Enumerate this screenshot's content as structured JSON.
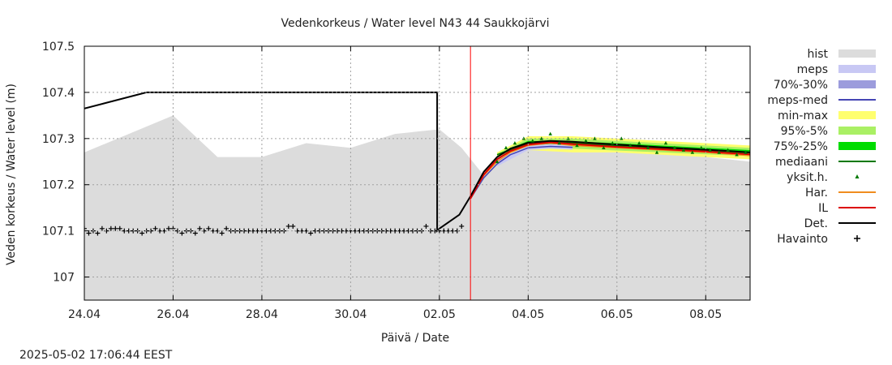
{
  "chart_data": {
    "type": "line",
    "title": "Vedenkorkeus / Water level   N43 44  Saukkojärvi",
    "xlabel": "Päivä / Date",
    "ylabel": "Veden korkeus / Water level (m)",
    "xlim": [
      0,
      15
    ],
    "ylim": [
      106.95,
      107.5
    ],
    "x_ticks": [
      {
        "pos": 0,
        "label": "24.04"
      },
      {
        "pos": 2,
        "label": "26.04"
      },
      {
        "pos": 4,
        "label": "28.04"
      },
      {
        "pos": 6,
        "label": "30.04"
      },
      {
        "pos": 8,
        "label": "02.05"
      },
      {
        "pos": 10,
        "label": "04.05"
      },
      {
        "pos": 12,
        "label": "06.05"
      },
      {
        "pos": 14,
        "label": "08.05"
      }
    ],
    "y_ticks": [
      {
        "val": 107.0,
        "label": "107"
      },
      {
        "val": 107.1,
        "label": "107.1"
      },
      {
        "val": 107.2,
        "label": "107.2"
      },
      {
        "val": 107.3,
        "label": "107.3"
      },
      {
        "val": 107.4,
        "label": "107.4"
      },
      {
        "val": 107.5,
        "label": "107.5"
      }
    ],
    "grid": true,
    "current_time_x": 8.7,
    "legend_position": "right",
    "legend": [
      {
        "key": "hist",
        "label": "hist",
        "style": "box",
        "color": "#dcdcdc"
      },
      {
        "key": "meps",
        "label": "meps",
        "style": "box",
        "color": "#c8c8f4"
      },
      {
        "key": "meps7030",
        "label": "70%-30%",
        "style": "box",
        "color": "#9c9cdc"
      },
      {
        "key": "mepsmed",
        "label": "meps-med",
        "style": "line",
        "color": "#4646b4"
      },
      {
        "key": "minmax",
        "label": "min-max",
        "style": "box",
        "color": "#ffff6e"
      },
      {
        "key": "p955",
        "label": "95%-5%",
        "style": "box",
        "color": "#aaf064"
      },
      {
        "key": "p7525",
        "label": "75%-25%",
        "style": "box",
        "color": "#00dc00"
      },
      {
        "key": "median",
        "label": "mediaani",
        "style": "line",
        "color": "#007800"
      },
      {
        "key": "yksit",
        "label": "yksit.h.",
        "style": "tri",
        "color": "#007800"
      },
      {
        "key": "har",
        "label": "Har.",
        "style": "line",
        "color": "#f08c1e"
      },
      {
        "key": "il",
        "label": "IL",
        "style": "line",
        "color": "#dc0000"
      },
      {
        "key": "det",
        "label": "Det.",
        "style": "line",
        "color": "#000000"
      },
      {
        "key": "havainto",
        "label": "Havainto",
        "style": "plus",
        "color": "#000000"
      }
    ],
    "series": [
      {
        "name": "hist",
        "kind": "area",
        "x": [
          0,
          2,
          3,
          4,
          5,
          6,
          7,
          8,
          8.5,
          9,
          9.5,
          10,
          11,
          12,
          13,
          14,
          15
        ],
        "y": [
          107.27,
          107.35,
          107.26,
          107.26,
          107.29,
          107.28,
          107.31,
          107.32,
          107.28,
          107.22,
          107.26,
          107.28,
          107.28,
          107.275,
          107.27,
          107.26,
          107.25
        ]
      },
      {
        "name": "min-max",
        "kind": "band",
        "x": [
          9.3,
          10,
          11,
          12,
          13,
          14,
          15
        ],
        "lo": [
          107.26,
          107.275,
          107.27,
          107.27,
          107.265,
          107.26,
          107.255
        ],
        "hi": [
          107.27,
          107.305,
          107.305,
          107.3,
          107.295,
          107.29,
          107.285
        ]
      },
      {
        "name": "95%-5%",
        "kind": "band",
        "x": [
          9.3,
          10,
          11,
          12,
          13,
          14,
          15
        ],
        "lo": [
          107.262,
          107.28,
          107.278,
          107.274,
          107.27,
          107.266,
          107.262
        ],
        "hi": [
          107.267,
          107.3,
          107.3,
          107.295,
          107.29,
          107.285,
          107.28
        ]
      },
      {
        "name": "75%-25%",
        "kind": "band",
        "x": [
          9.3,
          10,
          11,
          12,
          13,
          14,
          15
        ],
        "lo": [
          107.264,
          107.285,
          107.284,
          107.28,
          107.276,
          107.272,
          107.268
        ],
        "hi": [
          107.266,
          107.295,
          107.294,
          107.29,
          107.285,
          107.28,
          107.275
        ]
      },
      {
        "name": "meps",
        "kind": "band",
        "x": [
          9.3,
          10,
          10.5,
          11
        ],
        "lo": [
          107.24,
          107.275,
          107.278,
          107.276
        ],
        "hi": [
          107.255,
          107.285,
          107.288,
          107.286
        ]
      },
      {
        "name": "mediaani",
        "kind": "line",
        "x": [
          9.3,
          10,
          10.5,
          11,
          12,
          13,
          14,
          15
        ],
        "y": [
          107.265,
          107.29,
          107.292,
          107.29,
          107.285,
          107.28,
          107.275,
          107.27
        ]
      },
      {
        "name": "meps-med",
        "kind": "line",
        "x": [
          8.7,
          9,
          9.3,
          9.6,
          10,
          10.5,
          11
        ],
        "y": [
          107.17,
          107.215,
          107.245,
          107.265,
          107.28,
          107.283,
          107.281
        ]
      },
      {
        "name": "Har.",
        "kind": "line",
        "x": [
          8.7,
          9,
          9.3,
          9.6,
          10,
          10.5,
          11,
          12,
          13,
          14,
          15
        ],
        "y": [
          107.17,
          107.22,
          107.25,
          107.27,
          107.285,
          107.29,
          107.285,
          107.28,
          107.275,
          107.27,
          107.263
        ]
      },
      {
        "name": "IL",
        "kind": "line",
        "x": [
          8.7,
          9,
          9.3,
          9.6,
          10,
          10.5,
          11,
          12,
          13,
          14,
          15
        ],
        "y": [
          107.17,
          107.222,
          107.255,
          107.273,
          107.287,
          107.292,
          107.288,
          107.282,
          107.277,
          107.272,
          107.266
        ]
      },
      {
        "name": "Det.",
        "kind": "line",
        "x": [
          0,
          1.4,
          7.95,
          7.95,
          8.0,
          8.45,
          8.7,
          9,
          9.3,
          9.6,
          10,
          10.5,
          11,
          12,
          13,
          14,
          15
        ],
        "y": [
          107.365,
          107.4,
          107.4,
          107.1,
          107.105,
          107.135,
          107.175,
          107.228,
          107.26,
          107.278,
          107.291,
          107.295,
          107.293,
          107.287,
          107.281,
          107.276,
          107.27
        ]
      },
      {
        "name": "yksit.h.",
        "kind": "points",
        "x": [
          9.3,
          9.5,
          9.7,
          9.9,
          10.1,
          10.3,
          10.5,
          10.7,
          10.9,
          11.1,
          11.3,
          11.5,
          11.7,
          11.9,
          12.1,
          12.3,
          12.5,
          12.7,
          12.9,
          13.1,
          13.3,
          13.5,
          13.7,
          13.9,
          14.1,
          14.3,
          14.5,
          14.7,
          14.9
        ],
        "y": [
          107.25,
          107.28,
          107.29,
          107.3,
          107.295,
          107.3,
          107.31,
          107.29,
          107.3,
          107.285,
          107.295,
          107.3,
          107.28,
          107.29,
          107.3,
          107.285,
          107.29,
          107.28,
          107.27,
          107.29,
          107.28,
          107.275,
          107.27,
          107.28,
          107.275,
          107.27,
          107.275,
          107.265,
          107.27
        ]
      },
      {
        "name": "Havainto",
        "kind": "plus",
        "x": [
          0.0,
          0.1,
          0.2,
          0.3,
          0.4,
          0.5,
          0.6,
          0.7,
          0.8,
          0.9,
          1.0,
          1.1,
          1.2,
          1.3,
          1.4,
          1.5,
          1.6,
          1.7,
          1.8,
          1.9,
          2.0,
          2.1,
          2.2,
          2.3,
          2.4,
          2.5,
          2.6,
          2.7,
          2.8,
          2.9,
          3.0,
          3.1,
          3.2,
          3.3,
          3.4,
          3.5,
          3.6,
          3.7,
          3.8,
          3.9,
          4.0,
          4.1,
          4.2,
          4.3,
          4.4,
          4.5,
          4.6,
          4.7,
          4.8,
          4.9,
          5.0,
          5.1,
          5.2,
          5.3,
          5.4,
          5.5,
          5.6,
          5.7,
          5.8,
          5.9,
          6.0,
          6.1,
          6.2,
          6.3,
          6.4,
          6.5,
          6.6,
          6.7,
          6.8,
          6.9,
          7.0,
          7.1,
          7.2,
          7.3,
          7.4,
          7.5,
          7.6,
          7.7,
          7.8,
          7.9,
          8.0,
          8.1,
          8.2,
          8.3,
          8.4,
          8.5
        ],
        "y": [
          107.105,
          107.095,
          107.1,
          107.095,
          107.105,
          107.1,
          107.105,
          107.105,
          107.105,
          107.1,
          107.1,
          107.1,
          107.1,
          107.095,
          107.1,
          107.1,
          107.105,
          107.1,
          107.1,
          107.105,
          107.105,
          107.1,
          107.095,
          107.1,
          107.1,
          107.095,
          107.105,
          107.1,
          107.105,
          107.1,
          107.1,
          107.095,
          107.105,
          107.1,
          107.1,
          107.1,
          107.1,
          107.1,
          107.1,
          107.1,
          107.1,
          107.1,
          107.1,
          107.1,
          107.1,
          107.1,
          107.11,
          107.11,
          107.1,
          107.1,
          107.1,
          107.095,
          107.1,
          107.1,
          107.1,
          107.1,
          107.1,
          107.1,
          107.1,
          107.1,
          107.1,
          107.1,
          107.1,
          107.1,
          107.1,
          107.1,
          107.1,
          107.1,
          107.1,
          107.1,
          107.1,
          107.1,
          107.1,
          107.1,
          107.1,
          107.1,
          107.1,
          107.11,
          107.1,
          107.1,
          107.1,
          107.1,
          107.1,
          107.1,
          107.1,
          107.11
        ]
      }
    ]
  },
  "footer": {
    "timestamp": "2025-05-02 17:06:44 EEST"
  }
}
